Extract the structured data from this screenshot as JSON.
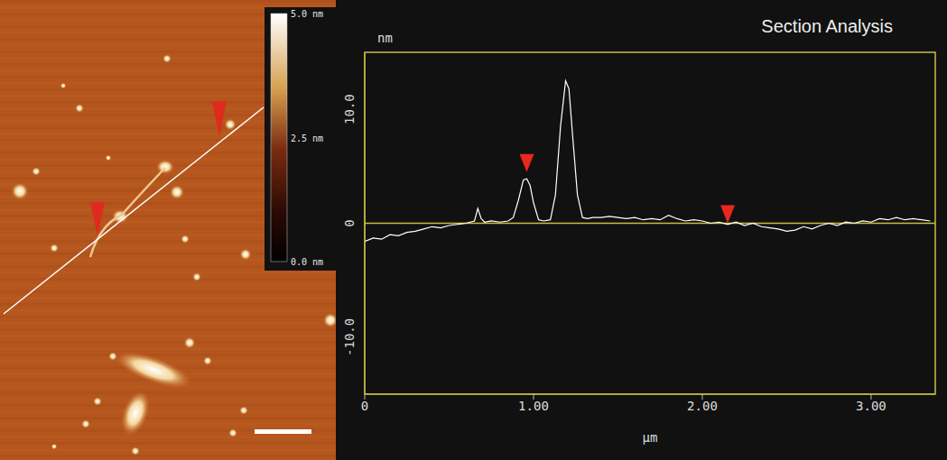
{
  "chart_data": {
    "type": "line",
    "title": "Section Analysis",
    "xlabel": "µm",
    "ylabel": "nm",
    "x": [
      0,
      0.05,
      0.1,
      0.15,
      0.2,
      0.25,
      0.3,
      0.35,
      0.4,
      0.45,
      0.5,
      0.55,
      0.6,
      0.65,
      0.67,
      0.69,
      0.71,
      0.75,
      0.8,
      0.85,
      0.88,
      0.91,
      0.94,
      0.96,
      0.98,
      1.0,
      1.03,
      1.06,
      1.1,
      1.13,
      1.16,
      1.19,
      1.21,
      1.23,
      1.26,
      1.29,
      1.32,
      1.35,
      1.4,
      1.45,
      1.5,
      1.55,
      1.6,
      1.65,
      1.7,
      1.75,
      1.8,
      1.85,
      1.9,
      1.95,
      2.0,
      2.05,
      2.1,
      2.15,
      2.2,
      2.25,
      2.3,
      2.35,
      2.4,
      2.45,
      2.5,
      2.55,
      2.6,
      2.65,
      2.7,
      2.75,
      2.8,
      2.85,
      2.9,
      2.95,
      3.0,
      3.05,
      3.1,
      3.15,
      3.2,
      3.25,
      3.3,
      3.35
    ],
    "values": [
      -1.6,
      -1.3,
      -1.4,
      -1.0,
      -1.1,
      -0.8,
      -0.7,
      -0.5,
      -0.3,
      -0.4,
      -0.2,
      -0.1,
      0.0,
      0.2,
      1.3,
      0.4,
      0.1,
      0.2,
      0.1,
      0.2,
      0.5,
      2.0,
      3.8,
      3.9,
      3.3,
      1.8,
      0.3,
      0.2,
      0.3,
      2.5,
      8.5,
      12.5,
      11.8,
      8.0,
      2.5,
      0.5,
      0.4,
      0.5,
      0.5,
      0.6,
      0.5,
      0.4,
      0.5,
      0.3,
      0.4,
      0.3,
      0.7,
      0.4,
      0.2,
      0.3,
      0.2,
      0.0,
      0.1,
      -0.1,
      0.1,
      -0.2,
      0.0,
      -0.3,
      -0.4,
      -0.5,
      -0.7,
      -0.6,
      -0.3,
      -0.5,
      -0.2,
      0.0,
      -0.2,
      0.1,
      0.0,
      0.2,
      0.1,
      0.4,
      0.3,
      0.5,
      0.3,
      0.4,
      0.3,
      0.2
    ],
    "color": "#ffffff",
    "baseline": 0,
    "cursors": {
      "x": [
        0.96,
        2.15
      ],
      "y": [
        4.5,
        0
      ]
    },
    "xlim": [
      0,
      3.38
    ],
    "xticks": [
      0,
      {
        "value": 1,
        "label": "1.00"
      },
      {
        "value": 2,
        "label": "2.00"
      },
      {
        "value": 3,
        "label": "3.00"
      }
    ],
    "ylim": [
      -15,
      15
    ],
    "yticks": [
      {
        "value": -10,
        "label": "-10.0"
      },
      0,
      {
        "value": 10,
        "label": "10.0"
      }
    ],
    "grid": false
  },
  "image": {
    "colorbar": {
      "range": [
        0,
        5
      ],
      "ticks": [
        {
          "value": 0,
          "label": "0.0 nm"
        },
        {
          "value": 2.5,
          "label": "2.5 nm"
        },
        {
          "value": 5,
          "label": "5.0 nm"
        }
      ]
    }
  }
}
